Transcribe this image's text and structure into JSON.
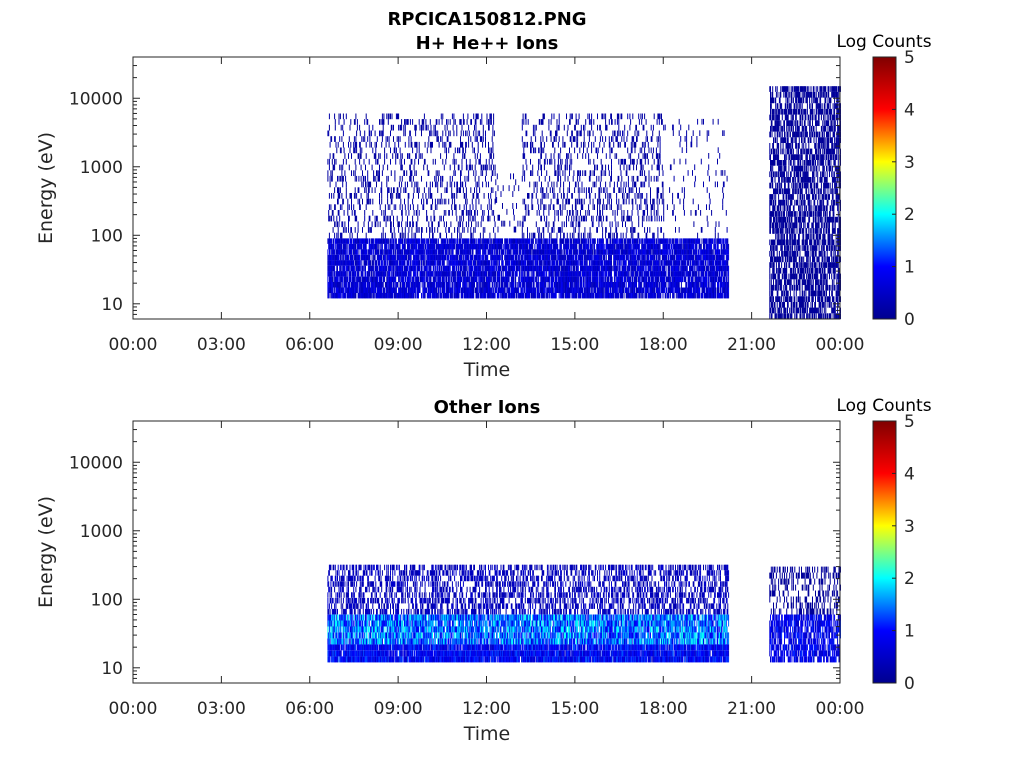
{
  "figure": {
    "title": "RPCICA150812.PNG",
    "colormap": [
      "#00008f",
      "#0000ff",
      "#00ffff",
      "#ffff00",
      "#ff0000",
      "#800000"
    ]
  },
  "chart_data": [
    {
      "type": "heatmap",
      "title": "H+ He++ Ions",
      "xlabel": "Time",
      "ylabel": "Energy (eV)",
      "x_ticks": [
        "00:00",
        "03:00",
        "06:00",
        "09:00",
        "12:00",
        "15:00",
        "18:00",
        "21:00",
        "00:00"
      ],
      "xlim_hours": [
        0,
        24
      ],
      "yscale": "log",
      "ylim": [
        6,
        40000
      ],
      "y_ticks": [
        10,
        100,
        1000,
        10000
      ],
      "y_tick_labels": [
        "10",
        "100",
        "1000",
        "10000"
      ],
      "colorbar": {
        "label": "Log Counts",
        "range": [
          0,
          5
        ],
        "ticks": [
          "0",
          "1",
          "2",
          "3",
          "4",
          "5"
        ]
      },
      "data_coverage_hours": [
        [
          6.6,
          20.2
        ],
        [
          21.6,
          24.0
        ]
      ],
      "regions": [
        {
          "from": 6.6,
          "to": 20.2,
          "e_min": 12,
          "e_max": 90,
          "level": 0.6,
          "density": 0.85
        },
        {
          "from": 6.6,
          "to": 12.3,
          "e_min": 90,
          "e_max": 6000,
          "level": 0.2,
          "density": 0.2
        },
        {
          "from": 12.3,
          "to": 13.2,
          "e_min": 90,
          "e_max": 800,
          "level": 0.2,
          "density": 0.08
        },
        {
          "from": 13.2,
          "to": 18.0,
          "e_min": 90,
          "e_max": 6000,
          "level": 0.2,
          "density": 0.22
        },
        {
          "from": 18.0,
          "to": 20.2,
          "e_min": 90,
          "e_max": 5000,
          "level": 0.2,
          "density": 0.05
        },
        {
          "from": 21.6,
          "to": 24.0,
          "e_min": 6,
          "e_max": 15000,
          "level": 0.1,
          "density": 0.6
        }
      ]
    },
    {
      "type": "heatmap",
      "title": "Other Ions",
      "xlabel": "Time",
      "ylabel": "Energy (eV)",
      "x_ticks": [
        "00:00",
        "03:00",
        "06:00",
        "09:00",
        "12:00",
        "15:00",
        "18:00",
        "21:00",
        "00:00"
      ],
      "xlim_hours": [
        0,
        24
      ],
      "yscale": "log",
      "ylim": [
        6,
        40000
      ],
      "y_ticks": [
        10,
        100,
        1000,
        10000
      ],
      "y_tick_labels": [
        "10",
        "100",
        "1000",
        "10000"
      ],
      "colorbar": {
        "label": "Log Counts",
        "range": [
          0,
          5
        ],
        "ticks": [
          "0",
          "1",
          "2",
          "3",
          "4",
          "5"
        ]
      },
      "data_coverage_hours": [
        [
          6.6,
          20.2
        ],
        [
          21.6,
          24.0
        ]
      ],
      "regions": [
        {
          "from": 6.6,
          "to": 20.2,
          "e_min": 12,
          "e_max": 22,
          "level": 0.9,
          "density": 0.95
        },
        {
          "from": 6.6,
          "to": 20.2,
          "e_min": 22,
          "e_max": 60,
          "level": 1.4,
          "density": 0.85
        },
        {
          "from": 6.6,
          "to": 20.2,
          "e_min": 60,
          "e_max": 320,
          "level": 0.4,
          "density": 0.45
        },
        {
          "from": 21.6,
          "to": 24.0,
          "e_min": 12,
          "e_max": 60,
          "level": 0.8,
          "density": 0.7
        },
        {
          "from": 21.6,
          "to": 24.0,
          "e_min": 60,
          "e_max": 300,
          "level": 0.1,
          "density": 0.3
        }
      ]
    }
  ]
}
